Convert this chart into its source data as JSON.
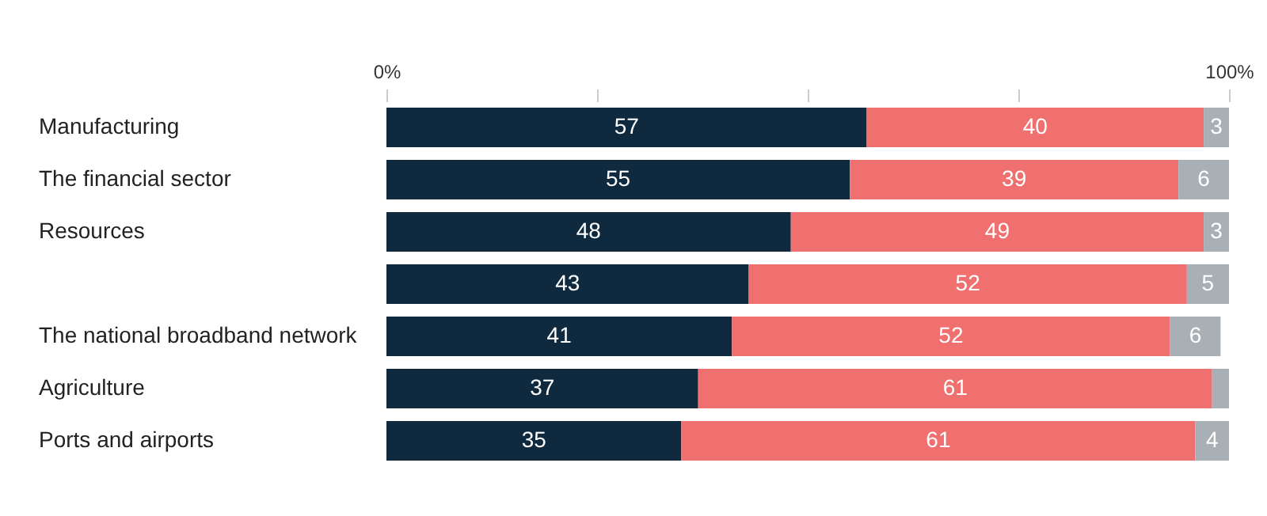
{
  "chart_data": {
    "type": "bar",
    "orientation": "horizontal",
    "stacked": true,
    "categories": [
      "Manufacturing",
      "The financial sector",
      "Resources",
      null,
      "The national broadband network",
      "Agriculture",
      "Ports and airports"
    ],
    "series": [
      {
        "color": "#0f2a3f",
        "values": [
          57,
          55,
          48,
          43,
          41,
          37,
          35
        ],
        "value_labels": [
          "57",
          "55",
          "48",
          "43",
          "41",
          "37",
          "35"
        ]
      },
      {
        "color": "#f07070",
        "values": [
          40,
          39,
          49,
          52,
          52,
          61,
          61
        ],
        "value_labels": [
          "40",
          "39",
          "49",
          "52",
          "52",
          "61",
          "61"
        ]
      },
      {
        "color": "#a9b0b5",
        "values": [
          3,
          6,
          3,
          5,
          6,
          2,
          4
        ],
        "value_labels": [
          "3",
          "6",
          "3",
          "5",
          "6",
          null,
          "4"
        ]
      }
    ],
    "xlim": [
      0,
      100
    ],
    "xticks": [
      {
        "value": 0,
        "label": "0%"
      },
      {
        "value": 25,
        "label": null
      },
      {
        "value": 50,
        "label": null
      },
      {
        "value": 75,
        "label": null
      },
      {
        "value": 100,
        "label": "100%"
      }
    ],
    "grid": false,
    "legend": false
  }
}
